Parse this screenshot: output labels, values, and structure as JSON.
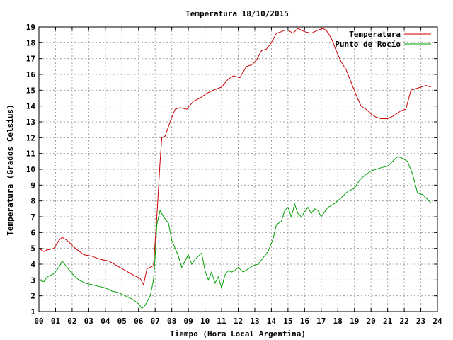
{
  "chart_data": {
    "type": "line",
    "title": "Temperatura 18/10/2015",
    "xlabel": "Tiempo (Hora Local Argentina)",
    "ylabel": "Temperatura (Grados Celsius)",
    "xlim": [
      0,
      24
    ],
    "ylim": [
      1,
      19
    ],
    "x_ticks": [
      "00",
      "01",
      "02",
      "03",
      "04",
      "05",
      "06",
      "07",
      "08",
      "09",
      "10",
      "11",
      "12",
      "13",
      "14",
      "15",
      "16",
      "17",
      "18",
      "19",
      "20",
      "21",
      "22",
      "23",
      "24"
    ],
    "y_ticks": [
      1,
      2,
      3,
      4,
      5,
      6,
      7,
      8,
      9,
      10,
      11,
      12,
      13,
      14,
      15,
      16,
      17,
      18,
      19
    ],
    "grid": true,
    "legend": "top-right",
    "series": [
      {
        "name": "Temperatura",
        "color": "#cc0000",
        "x": [
          0,
          0.3,
          0.5,
          0.9,
          1.2,
          1.4,
          1.7,
          2.2,
          2.7,
          3.2,
          3.7,
          4.2,
          4.7,
          5.2,
          5.7,
          6.1,
          6.3,
          6.5,
          6.9,
          7.1,
          7.3,
          7.4,
          7.6,
          7.9,
          8.2,
          8.5,
          8.9,
          9.3,
          9.7,
          10.1,
          10.5,
          11.0,
          11.4,
          11.7,
          12.1,
          12.5,
          12.8,
          13.1,
          13.4,
          13.7,
          14.0,
          14.3,
          14.6,
          14.8,
          15.0,
          15.3,
          15.6,
          16.0,
          16.4,
          16.8,
          17.1,
          17.3,
          17.6,
          17.9,
          18.2,
          18.5,
          18.8,
          19.1,
          19.4,
          19.7,
          20.0,
          20.3,
          20.6,
          21.0,
          21.4,
          21.8,
          22.1,
          22.4,
          22.7,
          23.0,
          23.3,
          23.6
        ],
        "values": [
          5.0,
          4.8,
          4.9,
          5.0,
          5.5,
          5.7,
          5.5,
          5.0,
          4.6,
          4.5,
          4.3,
          4.2,
          3.9,
          3.6,
          3.3,
          3.1,
          2.7,
          3.7,
          3.9,
          7.0,
          10.5,
          12.0,
          12.1,
          13.0,
          13.8,
          13.9,
          13.8,
          14.3,
          14.5,
          14.8,
          15.0,
          15.2,
          15.7,
          15.9,
          15.8,
          16.5,
          16.6,
          16.9,
          17.5,
          17.6,
          18.0,
          18.6,
          18.7,
          18.8,
          18.8,
          18.6,
          18.9,
          18.7,
          18.6,
          18.8,
          18.9,
          18.8,
          18.3,
          17.5,
          16.8,
          16.3,
          15.5,
          14.7,
          14.0,
          13.8,
          13.5,
          13.3,
          13.2,
          13.2,
          13.4,
          13.7,
          13.8,
          15.0,
          15.1,
          15.2,
          15.3,
          15.2
        ]
      },
      {
        "name": "Punto de Rocío",
        "color": "#00a000",
        "x": [
          0,
          0.3,
          0.5,
          0.9,
          1.2,
          1.4,
          1.7,
          2.0,
          2.4,
          2.8,
          3.2,
          3.6,
          4.0,
          4.4,
          4.8,
          5.2,
          5.6,
          6.0,
          6.2,
          6.4,
          6.7,
          6.9,
          7.0,
          7.1,
          7.3,
          7.5,
          7.8,
          8.0,
          8.2,
          8.4,
          8.6,
          8.8,
          9.0,
          9.2,
          9.4,
          9.6,
          9.8,
          10.0,
          10.2,
          10.4,
          10.6,
          10.8,
          11.0,
          11.2,
          11.4,
          11.6,
          11.8,
          12.0,
          12.3,
          12.6,
          12.9,
          13.2,
          13.5,
          13.8,
          14.1,
          14.3,
          14.6,
          14.8,
          15.0,
          15.2,
          15.4,
          15.6,
          15.8,
          16.0,
          16.2,
          16.4,
          16.6,
          16.8,
          17.0,
          17.2,
          17.4,
          17.6,
          18.0,
          18.3,
          18.6,
          19.0,
          19.3,
          19.6,
          20.0,
          20.3,
          20.6,
          21.0,
          21.3,
          21.6,
          21.9,
          22.2,
          22.5,
          22.8,
          23.1,
          23.4,
          23.6
        ],
        "values": [
          3.0,
          2.9,
          3.2,
          3.4,
          3.8,
          4.2,
          3.8,
          3.4,
          3.0,
          2.8,
          2.7,
          2.6,
          2.5,
          2.3,
          2.2,
          2.0,
          1.8,
          1.5,
          1.2,
          1.4,
          2.0,
          3.0,
          4.5,
          6.5,
          7.4,
          7.0,
          6.6,
          5.5,
          5.0,
          4.5,
          3.8,
          4.2,
          4.6,
          4.0,
          4.3,
          4.5,
          4.7,
          3.6,
          3.0,
          3.5,
          2.8,
          3.2,
          2.5,
          3.3,
          3.6,
          3.5,
          3.6,
          3.8,
          3.5,
          3.7,
          3.9,
          4.0,
          4.4,
          4.8,
          5.6,
          6.5,
          6.7,
          7.4,
          7.6,
          7.0,
          7.8,
          7.2,
          7.0,
          7.3,
          7.6,
          7.2,
          7.5,
          7.4,
          7.0,
          7.3,
          7.6,
          7.7,
          8.0,
          8.3,
          8.6,
          8.8,
          9.3,
          9.6,
          9.9,
          10.0,
          10.1,
          10.2,
          10.5,
          10.8,
          10.7,
          10.5,
          9.7,
          8.5,
          8.4,
          8.1,
          7.9
        ]
      }
    ]
  }
}
